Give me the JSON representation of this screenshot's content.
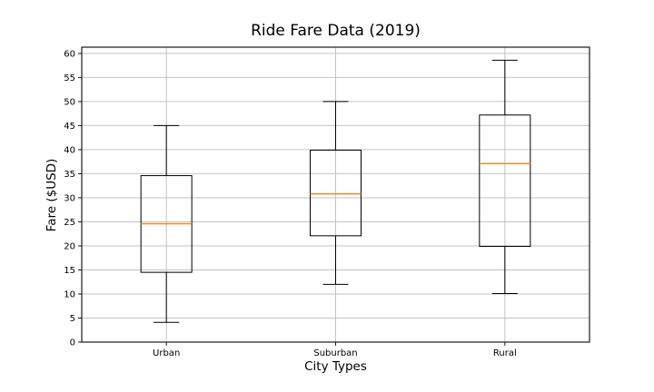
{
  "chart_data": {
    "type": "boxplot",
    "title": "Ride Fare Data (2019)",
    "xlabel": "City Types",
    "ylabel": "Fare ($USD)",
    "categories": [
      "Urban",
      "Suburban",
      "Rural"
    ],
    "series": [
      {
        "name": "Urban",
        "whisker_low": 4.1,
        "q1": 14.5,
        "median": 24.6,
        "q3": 34.6,
        "whisker_high": 45.0
      },
      {
        "name": "Suburban",
        "whisker_low": 12.0,
        "q1": 22.1,
        "median": 30.8,
        "q3": 39.9,
        "whisker_high": 50.0
      },
      {
        "name": "Rural",
        "whisker_low": 10.1,
        "q1": 19.9,
        "median": 37.1,
        "q3": 47.2,
        "whisker_high": 58.6
      }
    ],
    "yticks": [
      0,
      5,
      10,
      15,
      20,
      25,
      30,
      35,
      40,
      45,
      50,
      55,
      60
    ],
    "ylim": [
      0,
      61.3
    ],
    "grid": true,
    "legend": "none",
    "colors": {
      "box": "#000000",
      "median": "#ff7f0e",
      "grid": "#c3c3c3",
      "spine": "#1a1a1a",
      "background": "#ffffff"
    }
  }
}
